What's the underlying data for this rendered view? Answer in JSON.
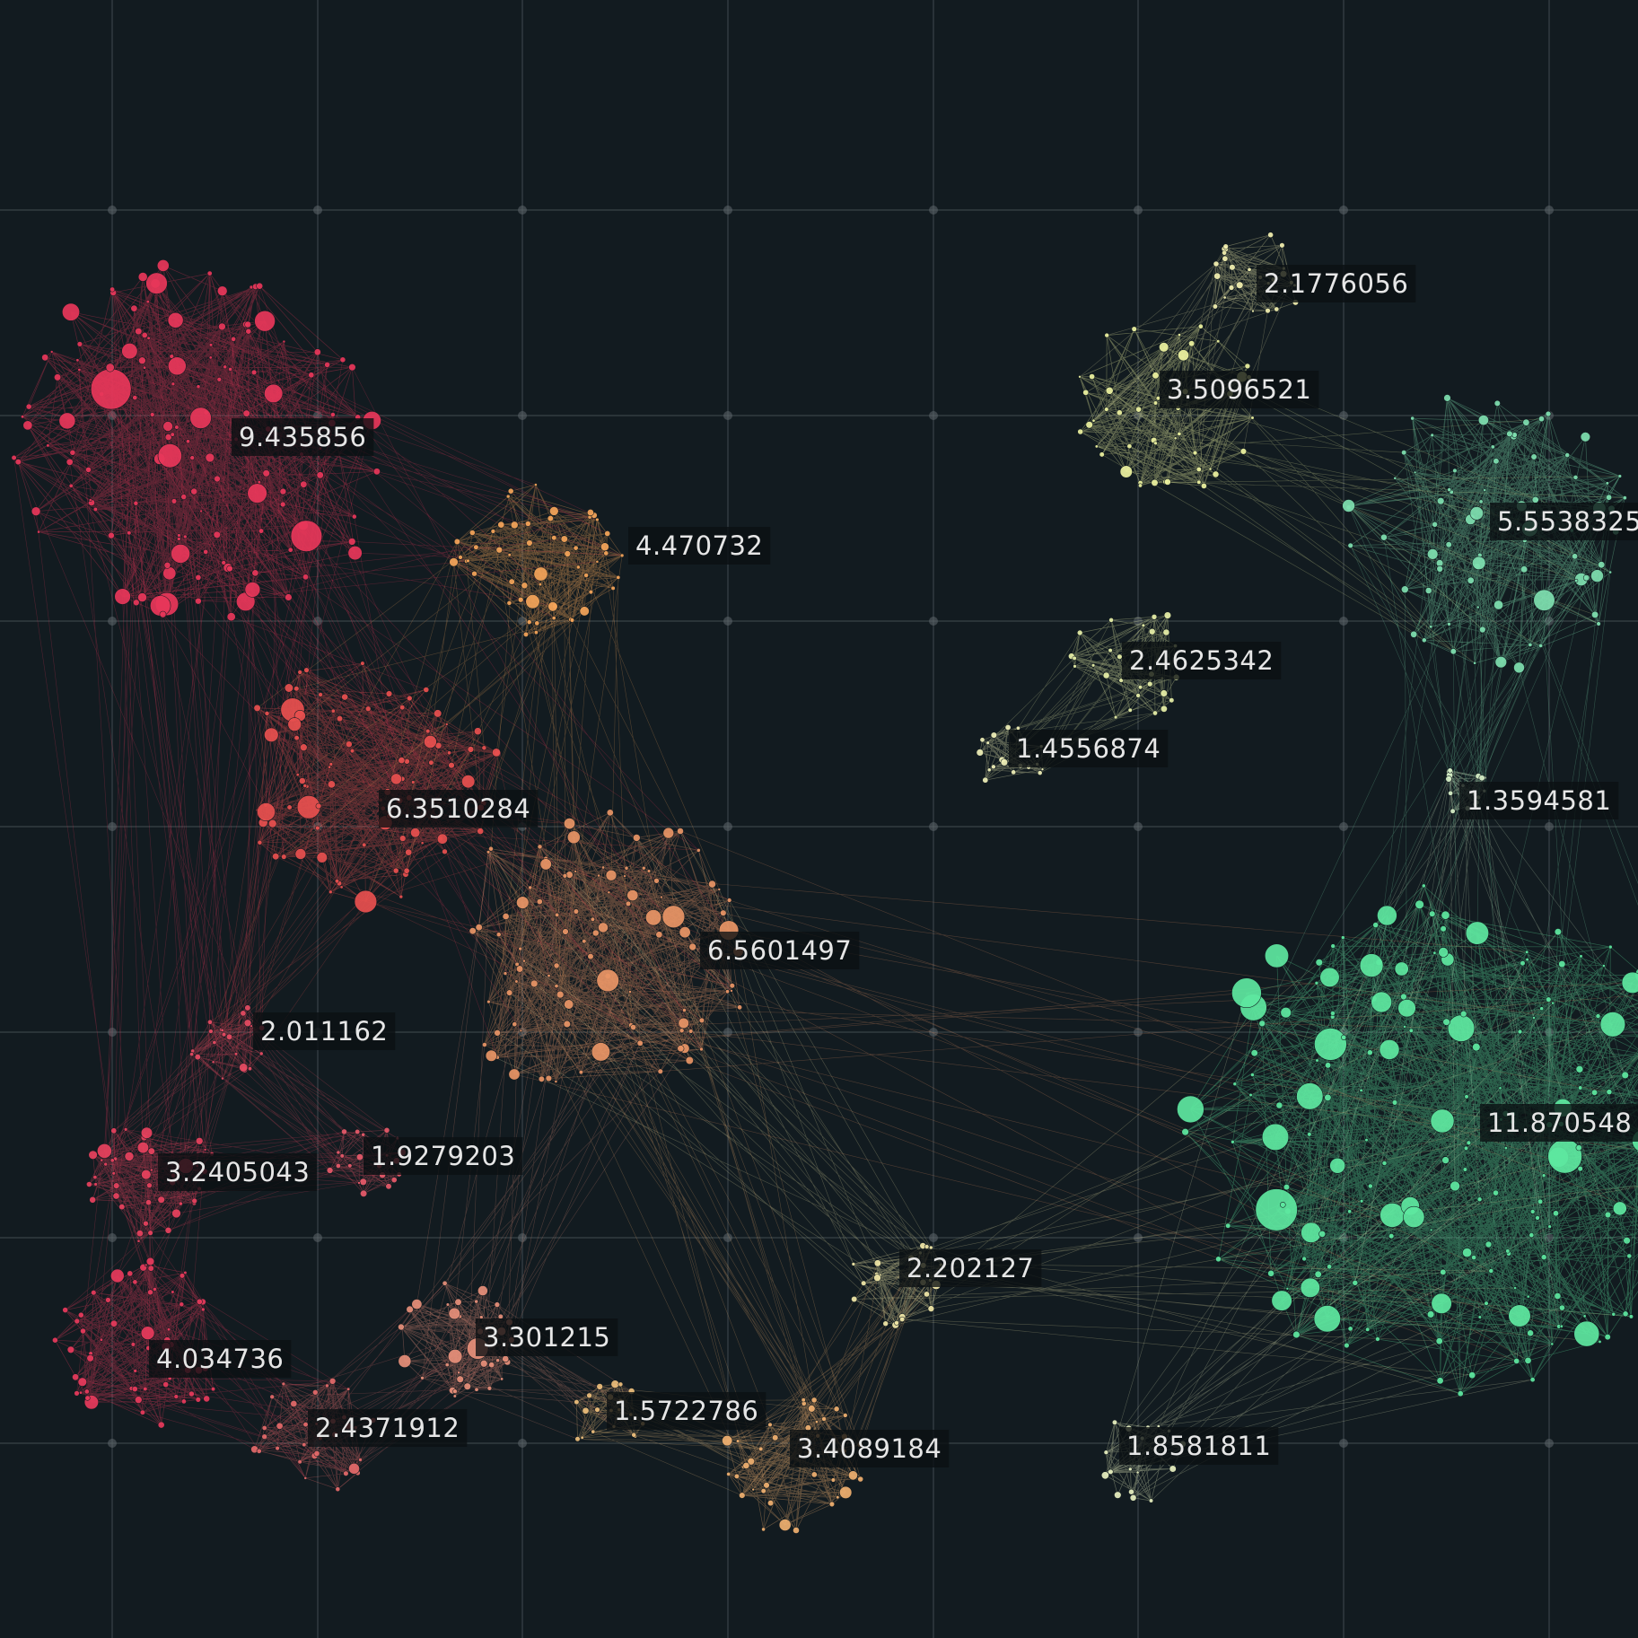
{
  "colors": {
    "background": "#121b20",
    "grid": "#5a6368"
  },
  "clusters": [
    {
      "id": "c1",
      "label": "9.435856",
      "color": "#e8375a",
      "node_count": 140
    },
    {
      "id": "c2",
      "label": "4.470732",
      "color": "#f5a55a",
      "node_count": 55
    },
    {
      "id": "c3",
      "label": "6.3510284",
      "color": "#e8504f",
      "node_count": 95
    },
    {
      "id": "c4",
      "label": "6.5601497",
      "color": "#e99566",
      "node_count": 100
    },
    {
      "id": "c5",
      "label": "2.011162",
      "color": "#e64b62",
      "node_count": 22
    },
    {
      "id": "c6",
      "label": "3.2405043",
      "color": "#e8425e",
      "node_count": 45
    },
    {
      "id": "c7",
      "label": "1.9279203",
      "color": "#e85a6a",
      "node_count": 22
    },
    {
      "id": "c8",
      "label": "4.034736",
      "color": "#e83a5c",
      "node_count": 60
    },
    {
      "id": "c9",
      "label": "2.4371912",
      "color": "#e46a6a",
      "node_count": 32
    },
    {
      "id": "c10",
      "label": "3.301215",
      "color": "#e7907a",
      "node_count": 38
    },
    {
      "id": "c11",
      "label": "1.5722786",
      "color": "#eebf7c",
      "node_count": 20
    },
    {
      "id": "c12",
      "label": "3.4089184",
      "color": "#f0b070",
      "node_count": 40
    },
    {
      "id": "c13",
      "label": "2.202127",
      "color": "#f2e8a8",
      "node_count": 26
    },
    {
      "id": "c14",
      "label": "2.1776056",
      "color": "#f3f0b0",
      "node_count": 25
    },
    {
      "id": "c15",
      "label": "3.5096521",
      "color": "#eef3a0",
      "node_count": 48
    },
    {
      "id": "c16",
      "label": "2.4625342",
      "color": "#e8f0a8",
      "node_count": 28
    },
    {
      "id": "c17",
      "label": "1.4556874",
      "color": "#f0f0b8",
      "node_count": 18
    },
    {
      "id": "c18",
      "label": "5.5538325",
      "color": "#7fe0b0",
      "node_count": 80
    },
    {
      "id": "c19",
      "label": "1.3594581",
      "color": "#d8f0c8",
      "node_count": 16
    },
    {
      "id": "c20",
      "label": "11.870548",
      "color": "#5ee8a0",
      "node_count": 200
    },
    {
      "id": "c21",
      "label": "1.8581811",
      "color": "#e8f0c0",
      "node_count": 20
    }
  ],
  "links": [
    [
      "c1",
      "c2"
    ],
    [
      "c1",
      "c3"
    ],
    [
      "c1",
      "c4"
    ],
    [
      "c1",
      "c5"
    ],
    [
      "c1",
      "c6"
    ],
    [
      "c2",
      "c3"
    ],
    [
      "c2",
      "c4"
    ],
    [
      "c3",
      "c4"
    ],
    [
      "c3",
      "c5"
    ],
    [
      "c5",
      "c6"
    ],
    [
      "c5",
      "c7"
    ],
    [
      "c6",
      "c8"
    ],
    [
      "c8",
      "c9"
    ],
    [
      "c9",
      "c10"
    ],
    [
      "c10",
      "c4"
    ],
    [
      "c10",
      "c11"
    ],
    [
      "c11",
      "c12"
    ],
    [
      "c12",
      "c13"
    ],
    [
      "c13",
      "c4"
    ],
    [
      "c13",
      "c20"
    ],
    [
      "c4",
      "c20"
    ],
    [
      "c14",
      "c15"
    ],
    [
      "c15",
      "c18"
    ],
    [
      "c16",
      "c17"
    ],
    [
      "c18",
      "c19"
    ],
    [
      "c19",
      "c20"
    ],
    [
      "c18",
      "c20"
    ],
    [
      "c21",
      "c20"
    ],
    [
      "c12",
      "c4"
    ],
    [
      "c6",
      "c7"
    ]
  ]
}
